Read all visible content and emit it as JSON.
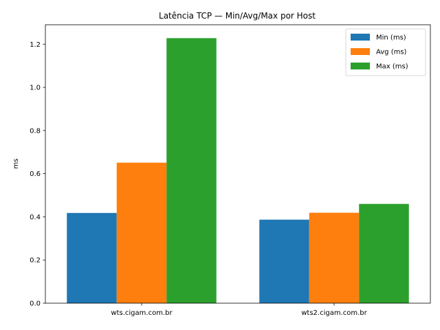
{
  "chart_data": {
    "type": "bar",
    "title": "Latência TCP — Min/Avg/Max por Host",
    "xlabel": "",
    "ylabel": "ms",
    "categories": [
      "wts.cigam.com.br",
      "wts2.cigam.com.br"
    ],
    "series": [
      {
        "name": "Min (ms)",
        "color": "#1f77b4",
        "values": [
          0.418,
          0.387
        ]
      },
      {
        "name": "Avg (ms)",
        "color": "#ff7f0e",
        "values": [
          0.651,
          0.419
        ]
      },
      {
        "name": "Max (ms)",
        "color": "#2ca02c",
        "values": [
          1.228,
          0.46
        ]
      }
    ],
    "ylim": [
      0,
      1.29
    ],
    "yticks": [
      "0.0",
      "0.2",
      "0.4",
      "0.6",
      "0.8",
      "1.0",
      "1.2"
    ],
    "legend": "upper-right",
    "grid": false
  }
}
